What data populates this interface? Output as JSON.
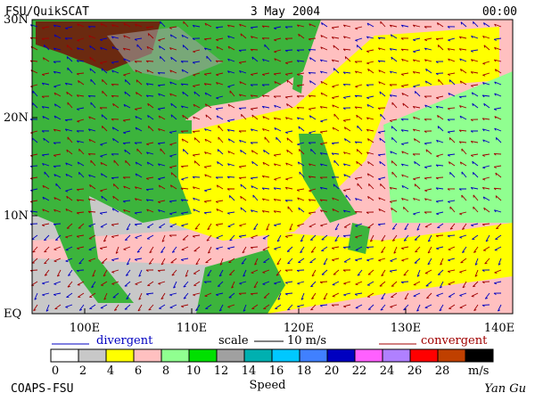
{
  "header": {
    "left": "FSU/QuikSCAT",
    "center": "3 May 2004",
    "right": "00:00"
  },
  "axes": {
    "lat_labels": [
      "30N",
      "20N",
      "10N",
      "EQ"
    ],
    "lon_labels": [
      "100E",
      "110E",
      "120E",
      "130E",
      "140E"
    ]
  },
  "legend": {
    "divergent": "divergent",
    "scale": "scale",
    "scale_value": "10 m/s",
    "convergent": "convergent"
  },
  "colorbar": {
    "ticks": [
      0,
      2,
      4,
      6,
      8,
      10,
      12,
      14,
      16,
      18,
      20,
      22,
      24,
      26,
      28
    ],
    "unit": "m/s",
    "label": "Speed",
    "colors": [
      "#ffffff",
      "#c8c8c8",
      "#ffff00",
      "#ffc0c0",
      "#90ff90",
      "#00e000",
      "#a0a0a0",
      "#00b0b0",
      "#00c8ff",
      "#4080ff",
      "#0000c0",
      "#ff60ff",
      "#b080ff",
      "#ff0000",
      "#c04000",
      "#000000"
    ]
  },
  "footer": {
    "left": "COAPS-FSU",
    "right": "Yan Gu"
  }
}
